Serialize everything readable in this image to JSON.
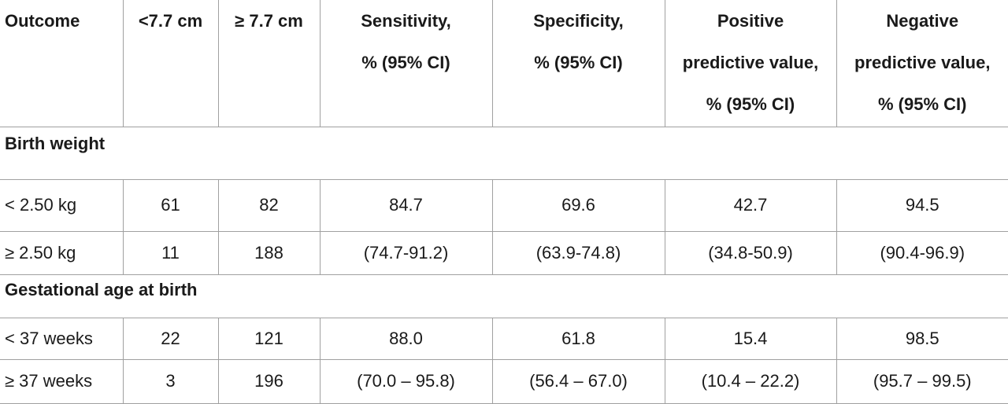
{
  "header": {
    "outcome": "Outcome",
    "lt": "<7.7 cm",
    "ge": "≥ 7.7 cm",
    "sensitivity": [
      "Sensitivity,",
      "% (95% CI)"
    ],
    "specificity": [
      "Specificity,",
      "% (95% CI)"
    ],
    "ppv": [
      "Positive",
      "predictive value,",
      "% (95% CI)"
    ],
    "npv": [
      "Negative",
      "predictive value,",
      "% (95% CI)"
    ]
  },
  "sections": [
    {
      "title": "Birth weight",
      "rows": [
        {
          "label": "< 2.50 kg",
          "lt": "61",
          "ge": "82",
          "sens": "84.7",
          "spec": "69.6",
          "ppv": "42.7",
          "npv": "94.5"
        },
        {
          "label": "≥ 2.50 kg",
          "lt": "11",
          "ge": "188",
          "sens": "(74.7-91.2)",
          "spec": "(63.9-74.8)",
          "ppv": "(34.8-50.9)",
          "npv": "(90.4-96.9)"
        }
      ]
    },
    {
      "title": "Gestational age at birth",
      "rows": [
        {
          "label": "< 37 weeks",
          "lt": "22",
          "ge": "121",
          "sens": "88.0",
          "spec": "61.8",
          "ppv": "15.4",
          "npv": "98.5"
        },
        {
          "label": "≥ 37 weeks",
          "lt": "3",
          "ge": "196",
          "sens": "(70.0 – 95.8)",
          "spec": "(56.4 – 67.0)",
          "ppv": "(10.4 – 22.2)",
          "npv": "(95.7 – 99.5)"
        }
      ]
    }
  ]
}
